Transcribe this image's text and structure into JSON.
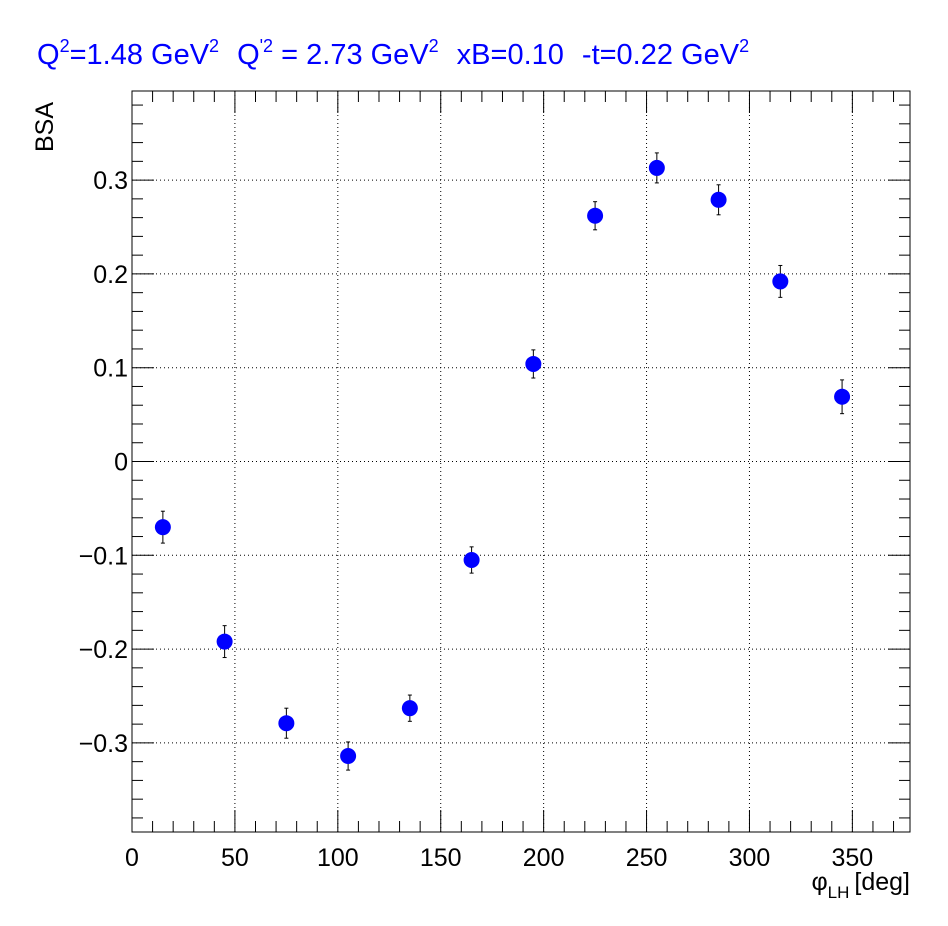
{
  "chart_data": {
    "type": "scatter",
    "title_parts": {
      "q2_base": "Q",
      "q2_exp": "2",
      "q2_value": "=1.48 GeV",
      "q2_unit_exp": "2",
      "qp2_base": "Q",
      "qp2_exp": "'2",
      "qp2_value": " = 2.73 GeV",
      "qp2_unit_exp": "2",
      "xb": "xB=0.10",
      "t_value": "-t=0.22 GeV",
      "t_unit_exp": "2"
    },
    "ylabel": "BSA",
    "xlabel_parts": {
      "symbol": "φ",
      "subscript": "LH",
      "unit": "[deg]"
    },
    "xlim": [
      0,
      378
    ],
    "ylim": [
      -0.395,
      0.395
    ],
    "x_ticks": [
      {
        "v": 0,
        "label": "0"
      },
      {
        "v": 50,
        "label": "50"
      },
      {
        "v": 100,
        "label": "100"
      },
      {
        "v": 150,
        "label": "150"
      },
      {
        "v": 200,
        "label": "200"
      },
      {
        "v": 250,
        "label": "250"
      },
      {
        "v": 300,
        "label": "300"
      },
      {
        "v": 350,
        "label": "350"
      }
    ],
    "y_ticks": [
      {
        "v": -0.3,
        "label": "−0.3"
      },
      {
        "v": -0.2,
        "label": "−0.2"
      },
      {
        "v": -0.1,
        "label": "−0.1"
      },
      {
        "v": 0,
        "label": "0"
      },
      {
        "v": 0.1,
        "label": "0.1"
      },
      {
        "v": 0.2,
        "label": "0.2"
      },
      {
        "v": 0.3,
        "label": "0.3"
      }
    ],
    "grid": true,
    "series": [
      {
        "color": "#0000ff",
        "points": [
          {
            "x": 15,
            "y": -0.07,
            "err": 0.017
          },
          {
            "x": 45,
            "y": -0.192,
            "err": 0.017
          },
          {
            "x": 75,
            "y": -0.279,
            "err": 0.016
          },
          {
            "x": 105,
            "y": -0.314,
            "err": 0.015
          },
          {
            "x": 135,
            "y": -0.263,
            "err": 0.014
          },
          {
            "x": 165,
            "y": -0.105,
            "err": 0.014
          },
          {
            "x": 195,
            "y": 0.104,
            "err": 0.015
          },
          {
            "x": 225,
            "y": 0.262,
            "err": 0.015
          },
          {
            "x": 255,
            "y": 0.313,
            "err": 0.016
          },
          {
            "x": 285,
            "y": 0.279,
            "err": 0.016
          },
          {
            "x": 315,
            "y": 0.192,
            "err": 0.017
          },
          {
            "x": 345,
            "y": 0.069,
            "err": 0.018
          }
        ]
      }
    ]
  }
}
